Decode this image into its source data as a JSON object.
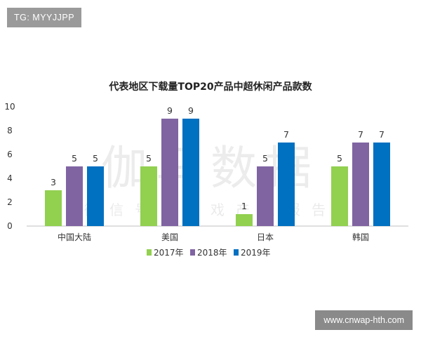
{
  "badge": {
    "text": "TG: MYYJJPP"
  },
  "site": {
    "text": "www.cnwap-hth.com"
  },
  "watermark": {
    "big": "伽马数据",
    "small": "微信号：游戏产业报告"
  },
  "chart_data": {
    "type": "bar",
    "title": "代表地区下载量TOP20产品中超休闲产品款数",
    "categories": [
      "中国大陆",
      "美国",
      "日本",
      "韩国"
    ],
    "series": [
      {
        "name": "2017年",
        "color": "#92d050",
        "values": [
          3,
          5,
          1,
          5
        ]
      },
      {
        "name": "2018年",
        "color": "#8064a2",
        "values": [
          5,
          9,
          5,
          7
        ]
      },
      {
        "name": "2019年",
        "color": "#0070c0",
        "values": [
          5,
          9,
          7,
          7
        ]
      }
    ],
    "ylim": [
      0,
      10
    ],
    "yticks": [
      0,
      2,
      4,
      6,
      8,
      10
    ],
    "xlabel": "",
    "ylabel": "",
    "grid": false,
    "legend_position": "bottom"
  }
}
